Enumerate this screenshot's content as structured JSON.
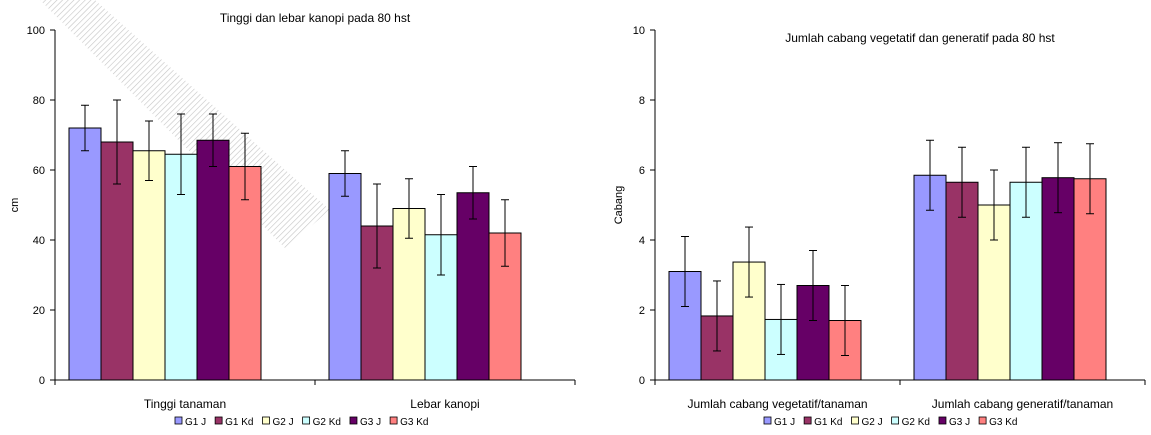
{
  "chart_data": [
    {
      "type": "bar",
      "title": "Tinggi dan lebar kanopi pada 80 hst",
      "ylabel": "cm",
      "xlabel": "",
      "ylim": [
        0,
        100
      ],
      "yticks": [
        "0",
        "20",
        "40",
        "60",
        "80",
        "100"
      ],
      "categories": [
        "Tinggi tanaman",
        "Lebar kanopi"
      ],
      "legend_position": "bottom",
      "series": [
        {
          "name": "G1 J",
          "color": "#9999ff",
          "values": [
            72,
            59
          ],
          "errors": [
            6.5,
            6.5
          ]
        },
        {
          "name": "G1 Kd",
          "color": "#993366",
          "values": [
            68,
            44
          ],
          "errors": [
            12,
            12
          ]
        },
        {
          "name": "G2 J",
          "color": "#ffffcc",
          "values": [
            65.5,
            49
          ],
          "errors": [
            8.5,
            8.5
          ]
        },
        {
          "name": "G2 Kd",
          "color": "#ccffff",
          "values": [
            64.5,
            41.5
          ],
          "errors": [
            11.5,
            11.5
          ]
        },
        {
          "name": "G3 J",
          "color": "#660066",
          "values": [
            68.5,
            53.5
          ],
          "errors": [
            7.5,
            7.5
          ]
        },
        {
          "name": "G3 Kd",
          "color": "#ff8080",
          "values": [
            61,
            42
          ],
          "errors": [
            9.5,
            9.5
          ]
        }
      ]
    },
    {
      "type": "bar",
      "title": "Jumlah cabang vegetatif dan generatif pada 80 hst",
      "ylabel": "Cabang",
      "xlabel": "",
      "ylim": [
        0,
        10
      ],
      "yticks": [
        "0",
        "2",
        "4",
        "6",
        "8",
        "10"
      ],
      "categories": [
        "Jumlah cabang vegetatif/tanaman",
        "Jumlah cabang generatif/tanaman"
      ],
      "legend_position": "bottom",
      "series": [
        {
          "name": "G1 J",
          "color": "#9999ff",
          "values": [
            3.1,
            5.85
          ],
          "errors": [
            1.0,
            1.0
          ]
        },
        {
          "name": "G1 Kd",
          "color": "#993366",
          "values": [
            1.83,
            5.65
          ],
          "errors": [
            1.0,
            1.0
          ]
        },
        {
          "name": "G2 J",
          "color": "#ffffcc",
          "values": [
            3.37,
            5.0
          ],
          "errors": [
            1.0,
            1.0
          ]
        },
        {
          "name": "G2 Kd",
          "color": "#ccffff",
          "values": [
            1.73,
            5.65
          ],
          "errors": [
            1.0,
            1.0
          ]
        },
        {
          "name": "G3 J",
          "color": "#660066",
          "values": [
            2.7,
            5.78
          ],
          "errors": [
            1.0,
            1.0
          ]
        },
        {
          "name": "G3 Kd",
          "color": "#ff8080",
          "values": [
            1.7,
            5.75
          ],
          "errors": [
            1.0,
            1.0
          ]
        }
      ]
    }
  ]
}
